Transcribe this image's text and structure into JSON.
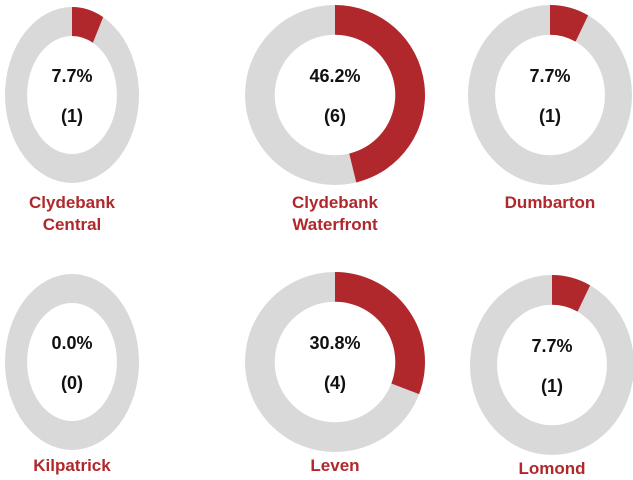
{
  "chart_data": [
    {
      "type": "donut",
      "title": "Clydebank Central",
      "values": [
        7.7
      ],
      "value_labels": [
        "7.7%"
      ],
      "counts": [
        1
      ],
      "count_labels": [
        "(1)"
      ],
      "color": "#b0282c",
      "track_color": "#d9d9d9"
    },
    {
      "type": "donut",
      "title": "Clydebank Waterfront",
      "values": [
        46.2
      ],
      "value_labels": [
        "46.2%"
      ],
      "counts": [
        6
      ],
      "count_labels": [
        "(6)"
      ],
      "color": "#b0282c",
      "track_color": "#d9d9d9"
    },
    {
      "type": "donut",
      "title": "Dumbarton",
      "values": [
        7.7
      ],
      "value_labels": [
        "7.7%"
      ],
      "counts": [
        1
      ],
      "count_labels": [
        "(1)"
      ],
      "color": "#b0282c",
      "track_color": "#d9d9d9"
    },
    {
      "type": "donut",
      "title": "Kilpatrick",
      "values": [
        0.0
      ],
      "value_labels": [
        "0.0%"
      ],
      "counts": [
        0
      ],
      "count_labels": [
        "(0)"
      ],
      "color": "#b0282c",
      "track_color": "#d9d9d9"
    },
    {
      "type": "donut",
      "title": "Leven",
      "values": [
        30.8
      ],
      "value_labels": [
        "30.8%"
      ],
      "counts": [
        4
      ],
      "count_labels": [
        "(4)"
      ],
      "color": "#b0282c",
      "track_color": "#d9d9d9"
    },
    {
      "type": "donut",
      "title": "Lomond",
      "values": [
        7.7
      ],
      "value_labels": [
        "7.7%"
      ],
      "counts": [
        1
      ],
      "count_labels": [
        "(1)"
      ],
      "color": "#b0282c",
      "track_color": "#d9d9d9"
    }
  ]
}
